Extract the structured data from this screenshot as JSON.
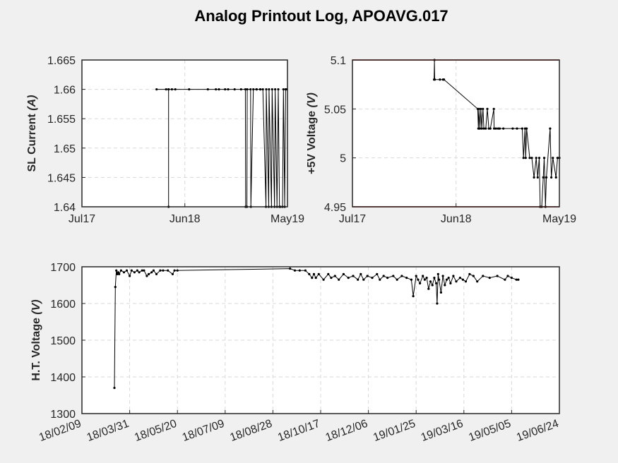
{
  "figure": {
    "title": "Analog Printout Log, APOAVG.017"
  },
  "colors": {
    "background": "#f0f0f0",
    "axes_bg": "#ffffff",
    "grid": "#d9d9d9",
    "line": "#000000",
    "limit": "#c00000"
  },
  "chart_data": [
    {
      "type": "line",
      "ylabel_prefix": "SL Current ",
      "ylabel_unit": "A",
      "ylim": [
        1.64,
        1.665
      ],
      "yticks": [
        1.64,
        1.645,
        1.65,
        1.655,
        1.66,
        1.665
      ],
      "ytick_labels": [
        "1.64",
        "1.645",
        "1.65",
        "1.655",
        "1.66",
        "1.665"
      ],
      "xlim": [
        "2017-07-01",
        "2019-05-01"
      ],
      "xticks": [
        "2017-07-01",
        "2018-06-01",
        "2019-05-01"
      ],
      "xtick_labels": [
        "Jul17",
        "Jun18",
        "May19"
      ],
      "grid": true,
      "series": [
        {
          "x": [
            "2018-03-01",
            "2018-04-01",
            "2018-04-09",
            "2018-04-09",
            "2018-04-09",
            "2018-04-20",
            "2018-05-01",
            "2018-06-15",
            "2018-08-15",
            "2018-09-10",
            "2018-09-20",
            "2018-10-10",
            "2018-10-20",
            "2018-11-10",
            "2018-12-01",
            "2018-12-15",
            "2018-12-16",
            "2018-12-20",
            "2018-12-21",
            "2019-01-01",
            "2019-01-02",
            "2019-01-10",
            "2019-01-20",
            "2019-01-21",
            "2019-02-01",
            "2019-02-02",
            "2019-02-10",
            "2019-02-20",
            "2019-02-21",
            "2019-03-01",
            "2019-03-02",
            "2019-03-10",
            "2019-03-12",
            "2019-03-20",
            "2019-03-22",
            "2019-03-28",
            "2019-04-01",
            "2019-04-05",
            "2019-04-08",
            "2019-04-15",
            "2019-04-18",
            "2019-04-22",
            "2019-04-25",
            "2019-04-29"
          ],
          "y": [
            1.66,
            1.66,
            1.66,
            1.64,
            1.66,
            1.66,
            1.66,
            1.66,
            1.66,
            1.66,
            1.66,
            1.66,
            1.66,
            1.66,
            1.66,
            1.66,
            1.64,
            1.64,
            1.66,
            1.66,
            1.64,
            1.66,
            1.66,
            1.66,
            1.66,
            1.66,
            1.66,
            1.64,
            1.66,
            1.64,
            1.66,
            1.64,
            1.66,
            1.64,
            1.66,
            1.64,
            1.66,
            1.64,
            1.64,
            1.64,
            1.66,
            1.64,
            1.66,
            1.66
          ]
        }
      ]
    },
    {
      "type": "line",
      "ylabel_prefix": "+5V Voltage ",
      "ylabel_unit": "V",
      "ylim": [
        4.95,
        5.1
      ],
      "yticks": [
        4.95,
        5.0,
        5.05,
        5.1
      ],
      "ytick_labels": [
        "4.95",
        "5",
        "5.05",
        "5.1"
      ],
      "xlim": [
        "2017-07-01",
        "2019-05-01"
      ],
      "xticks": [
        "2017-07-01",
        "2018-06-01",
        "2019-05-01"
      ],
      "xtick_labels": [
        "Jul17",
        "Jun18",
        "May19"
      ],
      "grid": true,
      "limits": [
        4.95,
        5.1
      ],
      "series": [
        {
          "x": [
            "2018-03-22",
            "2018-03-23",
            "2018-03-24",
            "2018-04-10",
            "2018-04-20",
            "2018-04-23",
            "2018-08-10",
            "2018-08-12",
            "2018-08-14",
            "2018-08-17",
            "2018-08-20",
            "2018-08-23",
            "2018-08-27",
            "2018-08-30",
            "2018-09-05",
            "2018-09-10",
            "2018-09-15",
            "2018-09-20",
            "2018-10-01",
            "2018-10-02",
            "2018-10-08",
            "2018-10-15",
            "2018-10-20",
            "2018-11-01",
            "2018-12-01",
            "2018-12-15",
            "2019-01-01",
            "2019-01-05",
            "2019-01-10",
            "2019-01-12",
            "2019-01-15",
            "2019-01-25",
            "2019-02-01",
            "2019-02-08",
            "2019-02-15",
            "2019-02-20",
            "2019-02-25",
            "2019-02-28",
            "2019-03-05",
            "2019-03-10",
            "2019-03-13",
            "2019-03-17",
            "2019-03-20",
            "2019-04-01",
            "2019-04-05",
            "2019-04-10",
            "2019-04-20",
            "2019-04-25",
            "2019-05-01"
          ],
          "y": [
            5.08,
            5.1,
            5.08,
            5.08,
            5.08,
            5.08,
            5.05,
            5.03,
            5.05,
            5.03,
            5.05,
            5.03,
            5.05,
            5.03,
            5.03,
            5.05,
            5.03,
            5.03,
            5.05,
            5.03,
            5.03,
            5.03,
            5.03,
            5.03,
            5.03,
            5.03,
            5.03,
            5.0,
            5.03,
            5.0,
            5.03,
            5.0,
            5.0,
            4.98,
            5.0,
            4.98,
            5.0,
            4.95,
            4.95,
            4.98,
            5.0,
            4.95,
            4.98,
            5.03,
            4.98,
            5.0,
            4.98,
            5.0,
            5.0
          ]
        }
      ]
    },
    {
      "type": "line",
      "ylabel_prefix": "H.T. Voltage ",
      "ylabel_unit": "V",
      "ylim": [
        1300,
        1700
      ],
      "yticks": [
        1300,
        1400,
        1500,
        1600,
        1700
      ],
      "ytick_labels": [
        "1300",
        "1400",
        "1500",
        "1600",
        "1700"
      ],
      "xlim": [
        "2018-02-09",
        "2019-06-24"
      ],
      "xticks": [
        "2018-02-09",
        "2018-03-31",
        "2018-05-20",
        "2018-07-09",
        "2018-08-28",
        "2018-10-17",
        "2018-12-06",
        "2019-01-25",
        "2019-03-16",
        "2019-05-05",
        "2019-06-24"
      ],
      "xtick_labels": [
        "18/02/09",
        "18/03/31",
        "18/05/20",
        "18/07/09",
        "18/08/28",
        "18/10/17",
        "18/12/06",
        "19/01/25",
        "19/03/16",
        "19/05/05",
        "19/06/24"
      ],
      "grid": true,
      "series": [
        {
          "x": [
            "2018-03-15",
            "2018-03-16",
            "2018-03-17",
            "2018-03-18",
            "2018-03-19",
            "2018-03-20",
            "2018-03-22",
            "2018-03-25",
            "2018-03-28",
            "2018-03-31",
            "2018-04-02",
            "2018-04-05",
            "2018-04-08",
            "2018-04-10",
            "2018-04-13",
            "2018-04-15",
            "2018-04-18",
            "2018-04-20",
            "2018-04-23",
            "2018-04-25",
            "2018-04-28",
            "2018-05-02",
            "2018-05-05",
            "2018-05-10",
            "2018-05-15",
            "2018-05-17",
            "2018-05-20",
            "2018-09-15",
            "2018-09-20",
            "2018-09-25",
            "2018-10-01",
            "2018-10-05",
            "2018-10-08",
            "2018-10-10",
            "2018-10-12",
            "2018-10-15",
            "2018-10-20",
            "2018-10-25",
            "2018-10-28",
            "2018-11-01",
            "2018-11-05",
            "2018-11-10",
            "2018-11-15",
            "2018-11-20",
            "2018-11-25",
            "2018-11-28",
            "2018-12-01",
            "2018-12-05",
            "2018-12-10",
            "2018-12-15",
            "2018-12-18",
            "2018-12-22",
            "2018-12-26",
            "2019-01-01",
            "2019-01-05",
            "2019-01-10",
            "2019-01-15",
            "2019-01-20",
            "2019-01-22",
            "2019-01-25",
            "2019-01-27",
            "2019-01-29",
            "2019-02-01",
            "2019-02-03",
            "2019-02-05",
            "2019-02-07",
            "2019-02-09",
            "2019-02-11",
            "2019-02-13",
            "2019-02-15",
            "2019-02-16",
            "2019-02-17",
            "2019-02-18",
            "2019-02-20",
            "2019-02-22",
            "2019-02-24",
            "2019-02-26",
            "2019-02-28",
            "2019-03-02",
            "2019-03-05",
            "2019-03-08",
            "2019-03-12",
            "2019-03-15",
            "2019-03-18",
            "2019-03-22",
            "2019-03-26",
            "2019-03-30",
            "2019-04-05",
            "2019-04-12",
            "2019-04-20",
            "2019-04-28",
            "2019-05-01",
            "2019-05-05",
            "2019-05-10",
            "2019-05-12"
          ],
          "y": [
            1370,
            1645,
            1690,
            1680,
            1685,
            1680,
            1690,
            1685,
            1690,
            1675,
            1690,
            1685,
            1690,
            1685,
            1690,
            1690,
            1675,
            1680,
            1685,
            1690,
            1680,
            1690,
            1690,
            1690,
            1680,
            1690,
            1690,
            1695,
            1690,
            1690,
            1690,
            1680,
            1670,
            1680,
            1670,
            1680,
            1665,
            1680,
            1670,
            1675,
            1665,
            1680,
            1670,
            1675,
            1665,
            1680,
            1665,
            1675,
            1670,
            1680,
            1665,
            1675,
            1670,
            1675,
            1665,
            1675,
            1670,
            1665,
            1620,
            1675,
            1665,
            1655,
            1675,
            1665,
            1670,
            1640,
            1660,
            1650,
            1670,
            1655,
            1600,
            1680,
            1665,
            1630,
            1675,
            1650,
            1665,
            1670,
            1655,
            1675,
            1660,
            1670,
            1665,
            1660,
            1680,
            1675,
            1660,
            1675,
            1670,
            1675,
            1665,
            1675,
            1670,
            1665,
            1665
          ]
        }
      ]
    }
  ]
}
